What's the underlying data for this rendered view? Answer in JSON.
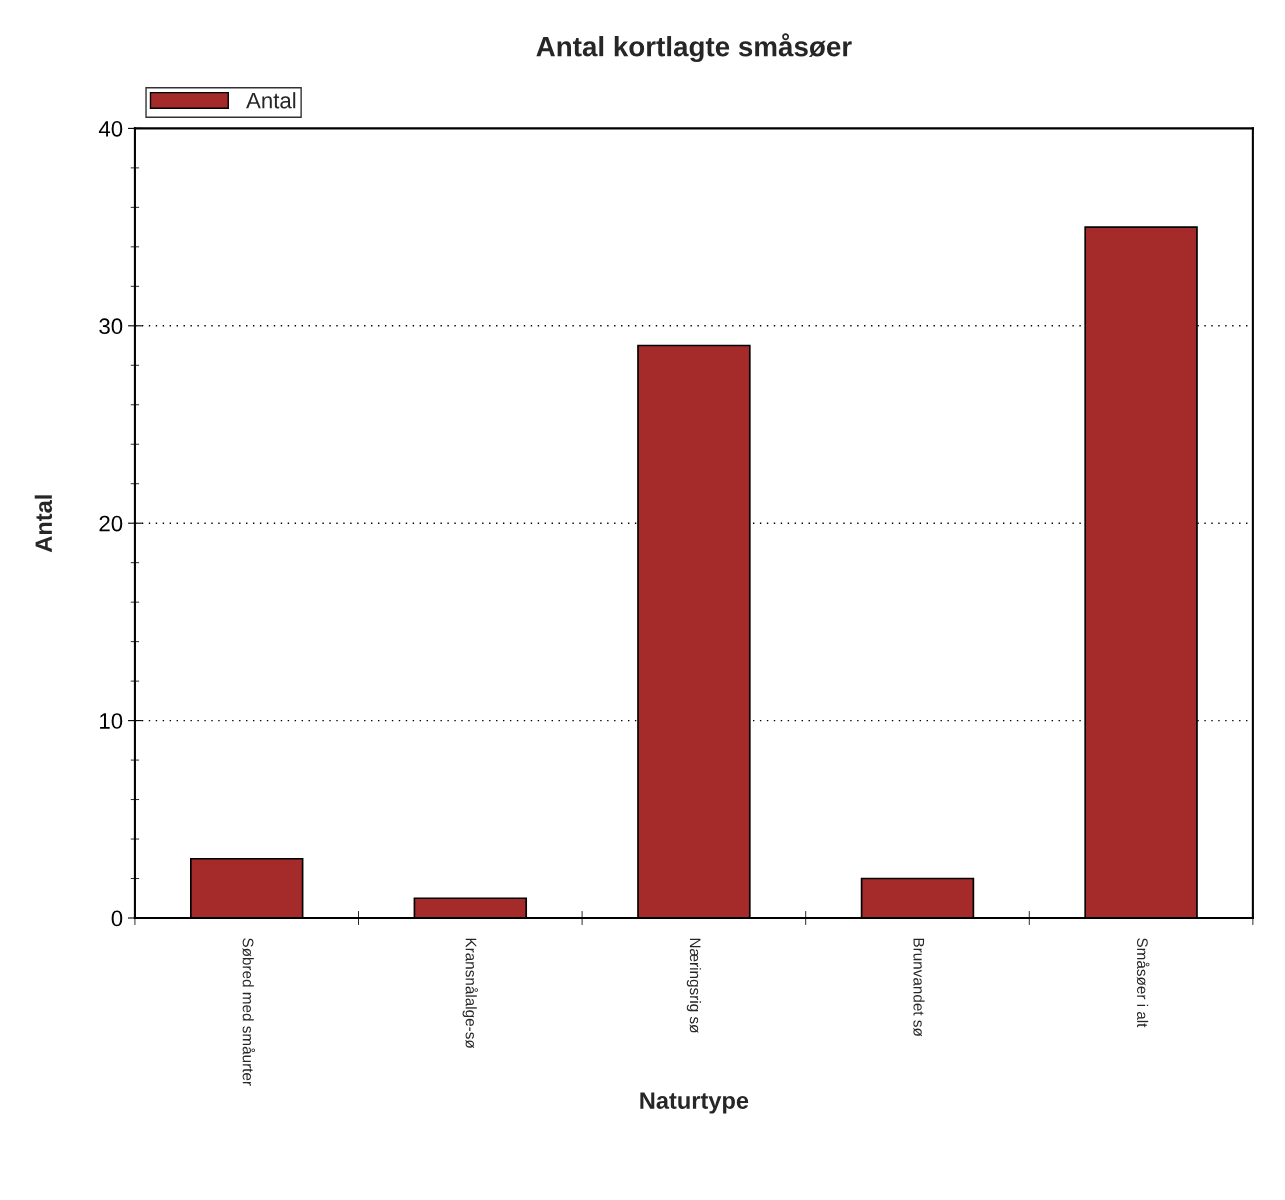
{
  "chart_data": {
    "type": "bar",
    "title": "Antal kortlagte småsøer",
    "xlabel": "Naturtype",
    "ylabel": "Antal",
    "categories": [
      "Søbred med småurter",
      "Kransnålalge-sø",
      "Næringsrig sø",
      "Brunvandet sø",
      "Småsøer i alt"
    ],
    "series": [
      {
        "name": "Antal",
        "color": "#a52a2a",
        "values": [
          3,
          1,
          29,
          2,
          35
        ]
      }
    ],
    "ylim": [
      0,
      40
    ],
    "yticks": [
      0,
      10,
      20,
      30,
      40
    ],
    "grid": "y",
    "legend": "top left"
  }
}
